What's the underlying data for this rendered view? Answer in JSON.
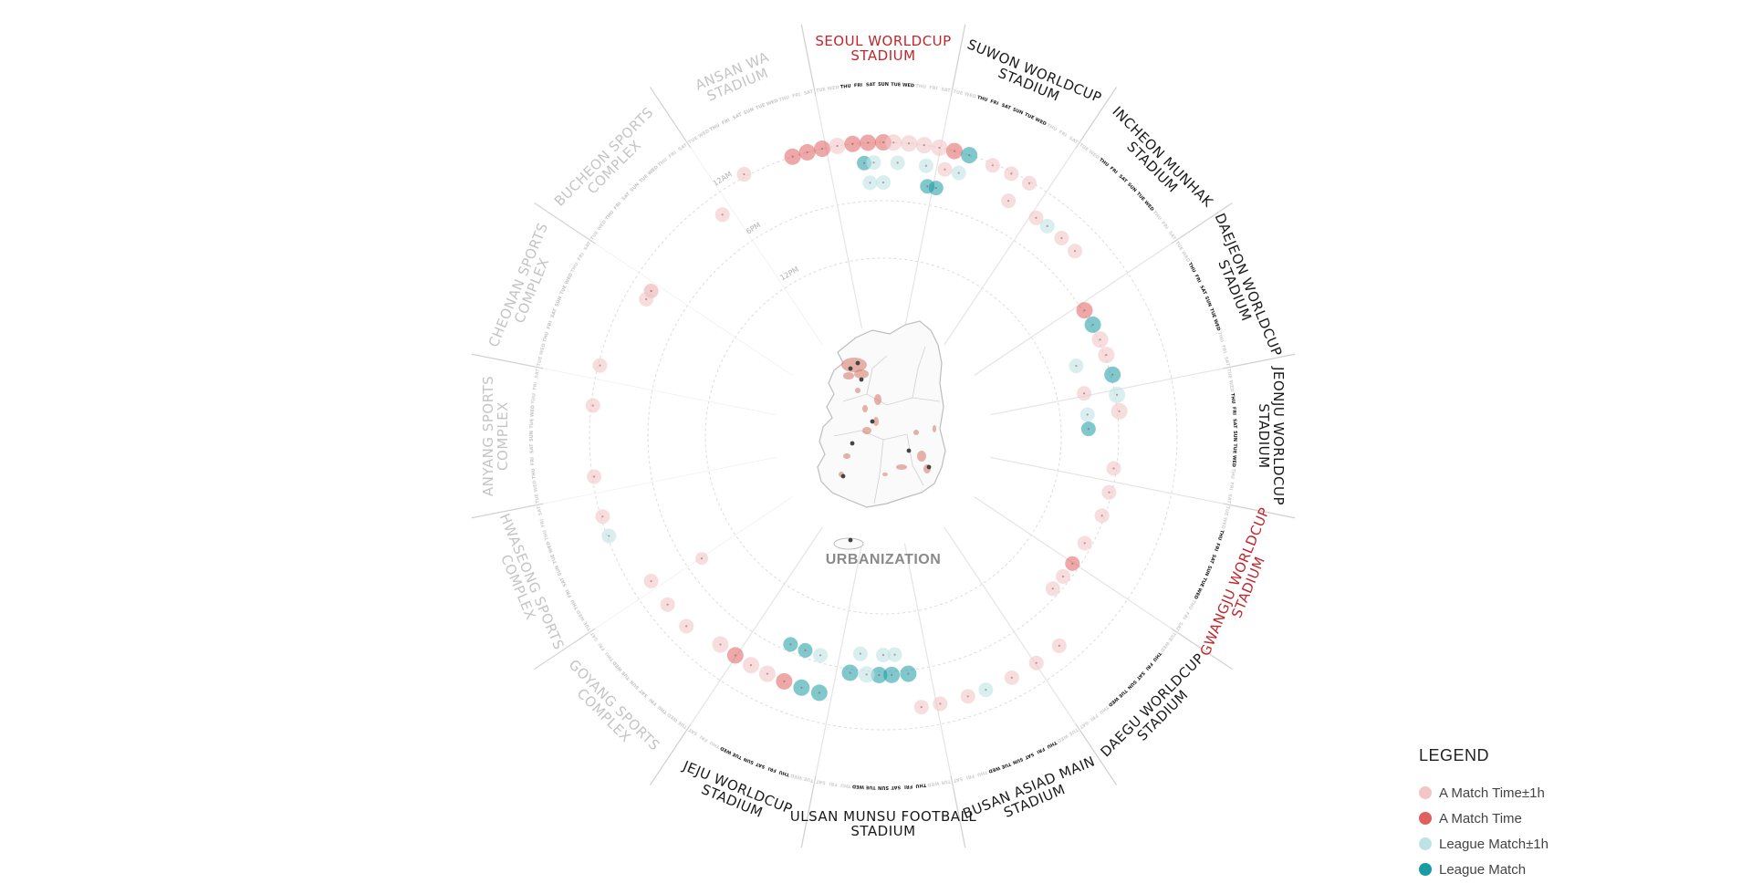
{
  "center_label": "URBANIZATION",
  "time_rings": [
    "12AM",
    "6PM",
    "12PM"
  ],
  "days": [
    "TUE",
    "WED",
    "THU",
    "FRI",
    "SAT",
    "SUN",
    "TUE",
    "WED",
    "THU",
    "FRI",
    "SAT"
  ],
  "stadiums": [
    {
      "lines": [
        "SEOUL WORLDCUP",
        "STADIUM"
      ],
      "status": "highlight"
    },
    {
      "lines": [
        "SUWON WORLDCUP",
        "STADIUM"
      ],
      "status": "active"
    },
    {
      "lines": [
        "INCHEON MUNHAK",
        "STADIUM"
      ],
      "status": "active"
    },
    {
      "lines": [
        "DAEJEON WORLDCUP",
        "STADIUM"
      ],
      "status": "active"
    },
    {
      "lines": [
        "JEONJU WORLDCUP",
        "STADIUM"
      ],
      "status": "active"
    },
    {
      "lines": [
        "GWANGJU WORLDCUP",
        "STADIUM"
      ],
      "status": "highlight"
    },
    {
      "lines": [
        "DAEGU WORLDCUP",
        "STADIUM"
      ],
      "status": "active"
    },
    {
      "lines": [
        "BUSAN ASIAD MAIN",
        "STADIUM"
      ],
      "status": "active"
    },
    {
      "lines": [
        "ULSAN MUNSU FOOTBALL",
        "STADIUM"
      ],
      "status": "active"
    },
    {
      "lines": [
        "JEJU WORLDCUP",
        "STADIUM"
      ],
      "status": "active"
    },
    {
      "lines": [
        "GOYANG SPORTS",
        "COMPLEX"
      ],
      "status": "inactive"
    },
    {
      "lines": [
        "HWASEONG SPORTS",
        "COMPLEX"
      ],
      "status": "inactive"
    },
    {
      "lines": [
        "ANYANG SPORTS",
        "COMPLEX"
      ],
      "status": "inactive"
    },
    {
      "lines": [
        "CHEONAN SPORTS",
        "COMPLEX"
      ],
      "status": "inactive"
    },
    {
      "lines": [
        "BUCHEON SPORTS",
        "COMPLEX"
      ],
      "status": "inactive"
    },
    {
      "lines": [
        "ANSAN WA",
        "STADIUM"
      ],
      "status": "inactive"
    }
  ],
  "colors": {
    "highlight": "#c0262d",
    "active": "#1a1a1a",
    "inactive": "#c4c4c4",
    "a_match_pm1h": "#f2c6c6",
    "a_match": "#e06060",
    "league_pm1h": "#bfe3e5",
    "league": "#1a9aa3"
  },
  "legend": {
    "title": "LEGEND",
    "items": [
      {
        "label": "A Match Time±1h",
        "key": "a_match_pm1h"
      },
      {
        "label": "A Match Time",
        "key": "a_match"
      },
      {
        "label": "League Match±1h",
        "key": "league_pm1h"
      },
      {
        "label": "League Match",
        "key": "league"
      }
    ]
  }
}
